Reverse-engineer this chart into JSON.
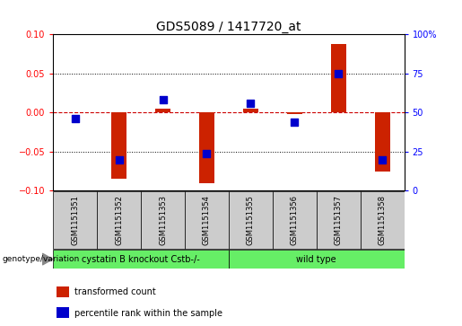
{
  "title": "GDS5089 / 1417720_at",
  "samples": [
    "GSM1151351",
    "GSM1151352",
    "GSM1151353",
    "GSM1151354",
    "GSM1151355",
    "GSM1151356",
    "GSM1151357",
    "GSM1151358"
  ],
  "transformed_count": [
    0.0,
    -0.085,
    0.005,
    -0.09,
    0.005,
    -0.002,
    0.088,
    -0.075
  ],
  "percentile_rank": [
    46,
    20,
    58,
    24,
    56,
    44,
    75,
    20
  ],
  "ylim_left": [
    -0.1,
    0.1
  ],
  "ylim_right": [
    0,
    100
  ],
  "yticks_left": [
    -0.1,
    -0.05,
    0,
    0.05,
    0.1
  ],
  "yticks_right": [
    0,
    25,
    50,
    75,
    100
  ],
  "group1_label": "cystatin B knockout Cstb-/-",
  "group2_label": "wild type",
  "group_color": "#66ee66",
  "group_row_label": "genotype/variation",
  "bar_color": "#cc2200",
  "dot_color": "#0000cc",
  "zero_line_color": "#cc0000",
  "bg_color": "#ffffff",
  "sample_bg_color": "#cccccc",
  "legend_items": [
    {
      "label": "transformed count",
      "color": "#cc2200"
    },
    {
      "label": "percentile rank within the sample",
      "color": "#0000cc"
    }
  ],
  "bar_width": 0.35,
  "dot_size": 28,
  "title_fontsize": 10,
  "tick_fontsize": 7,
  "sample_fontsize": 6,
  "group_fontsize": 7,
  "legend_fontsize": 7
}
